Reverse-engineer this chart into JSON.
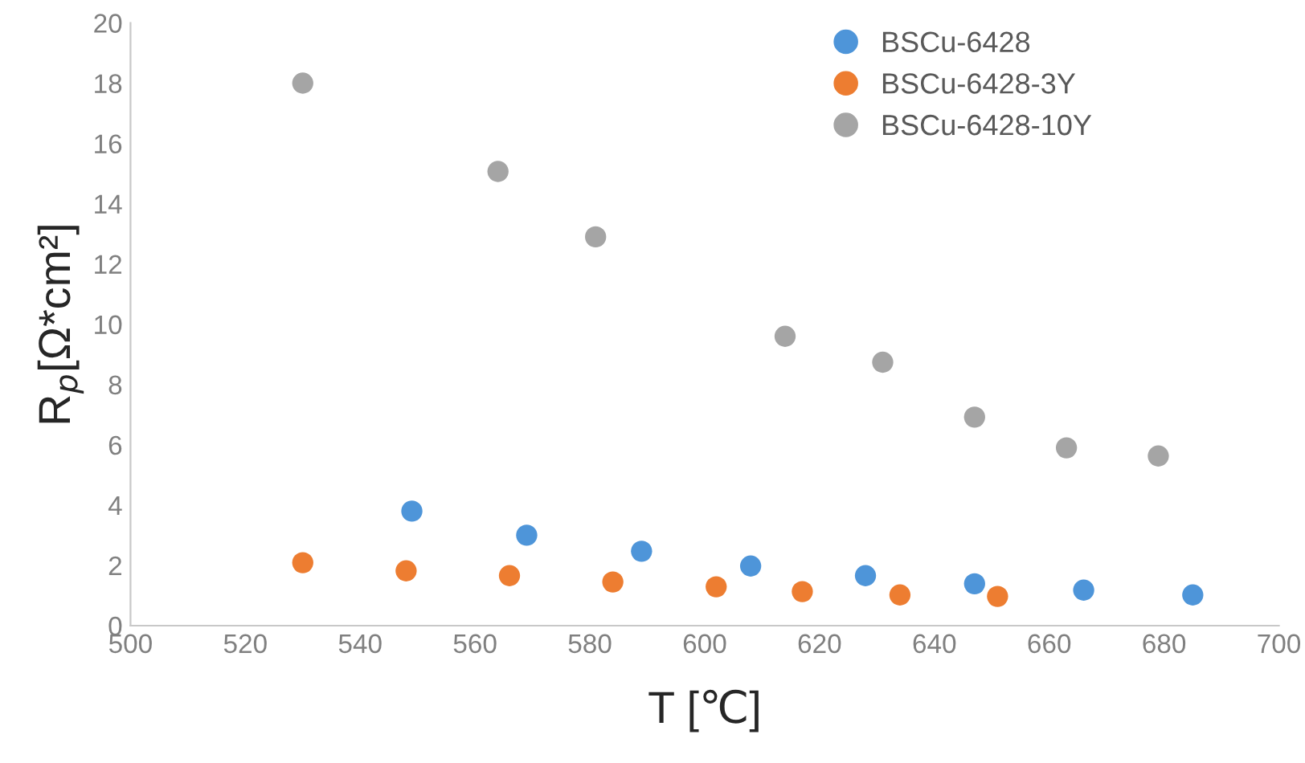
{
  "chart_data": {
    "type": "scatter",
    "xlabel": "T [℃]",
    "ylabel": "R$_{p}$[Ω*cm²]",
    "xlim": [
      500,
      700
    ],
    "xticks": [
      500,
      520,
      540,
      560,
      580,
      600,
      620,
      640,
      660,
      680,
      700
    ],
    "ylim": [
      0,
      20
    ],
    "yticks": [
      0,
      2,
      4,
      6,
      8,
      10,
      12,
      14,
      16,
      18,
      20
    ],
    "grid": false,
    "legend": "top right",
    "marker": "circle",
    "series": [
      {
        "name": "BSCu-6428",
        "color": "#4e95d9",
        "x": [
          549,
          569,
          589,
          608,
          628,
          647,
          666,
          685
        ],
        "values": [
          3.8,
          3.0,
          2.47,
          1.98,
          1.66,
          1.39,
          1.18,
          1.02
        ]
      },
      {
        "name": "BSCu-6428-3Y",
        "color": "#ed7d31",
        "x": [
          530,
          548,
          566,
          584,
          602,
          617,
          634,
          651
        ],
        "values": [
          2.09,
          1.82,
          1.66,
          1.45,
          1.29,
          1.13,
          1.02,
          0.97
        ]
      },
      {
        "name": "BSCu-6428-10Y",
        "color": "#a5a5a5",
        "x": [
          530,
          564,
          581,
          614,
          631,
          647,
          663,
          679
        ],
        "values": [
          18.0,
          15.07,
          12.9,
          9.6,
          8.74,
          6.92,
          5.9,
          5.63
        ]
      }
    ]
  }
}
